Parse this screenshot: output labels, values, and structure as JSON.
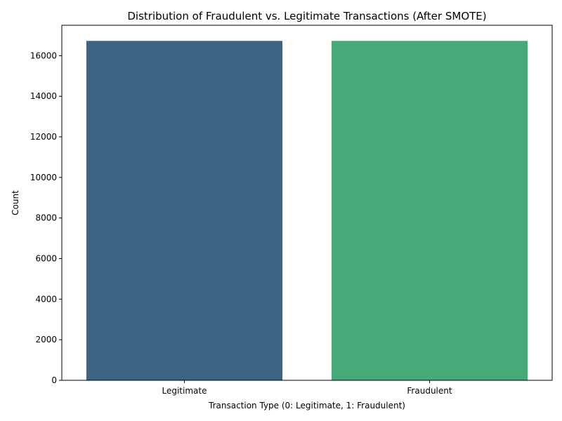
{
  "chart_data": {
    "type": "bar",
    "title": "Distribution of Fraudulent vs. Legitimate Transactions (After SMOTE)",
    "xlabel": "Transaction Type (0: Legitimate, 1: Fraudulent)",
    "ylabel": "Count",
    "categories": [
      "Legitimate",
      "Fraudulent"
    ],
    "values": [
      16730,
      16730
    ],
    "colors": [
      "#3e6483",
      "#46a978"
    ],
    "ylim": [
      0,
      17500
    ],
    "yticks": [
      0,
      2000,
      4000,
      6000,
      8000,
      10000,
      12000,
      14000,
      16000
    ],
    "grid": false,
    "legend": "none"
  }
}
